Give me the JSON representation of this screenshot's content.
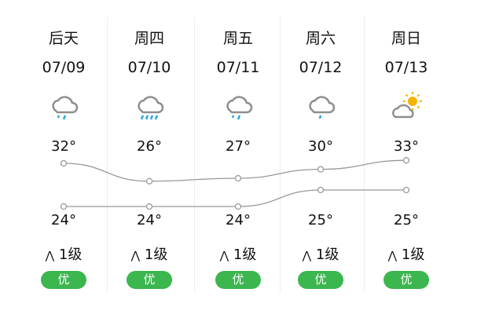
{
  "days": [
    {
      "day": "后天",
      "date": "07/09",
      "icon": "light-rain-icon",
      "high": "32°",
      "low": "24°",
      "wind": "1级",
      "aqi": "优"
    },
    {
      "day": "周四",
      "date": "07/10",
      "icon": "moderate-rain-icon",
      "high": "26°",
      "low": "24°",
      "wind": "1级",
      "aqi": "优"
    },
    {
      "day": "周五",
      "date": "07/11",
      "icon": "light-rain-icon",
      "high": "27°",
      "low": "24°",
      "wind": "1级",
      "aqi": "优"
    },
    {
      "day": "周六",
      "date": "07/12",
      "icon": "drizzle-icon",
      "high": "30°",
      "low": "25°",
      "wind": "1级",
      "aqi": "优"
    },
    {
      "day": "周日",
      "date": "07/13",
      "icon": "partly-cloudy-icon",
      "high": "33°",
      "low": "25°",
      "wind": "1级",
      "aqi": "优"
    }
  ],
  "chart_data": {
    "type": "line",
    "series": [
      {
        "values": [
          32,
          26,
          27,
          30,
          33
        ]
      },
      {
        "values": [
          24,
          24,
          24,
          25,
          25
        ]
      }
    ]
  },
  "colors": {
    "aqi": "#3cb64e",
    "rain": "#2aa7dc",
    "cloud": "#8e8e8e",
    "sun": "#f5b400"
  }
}
